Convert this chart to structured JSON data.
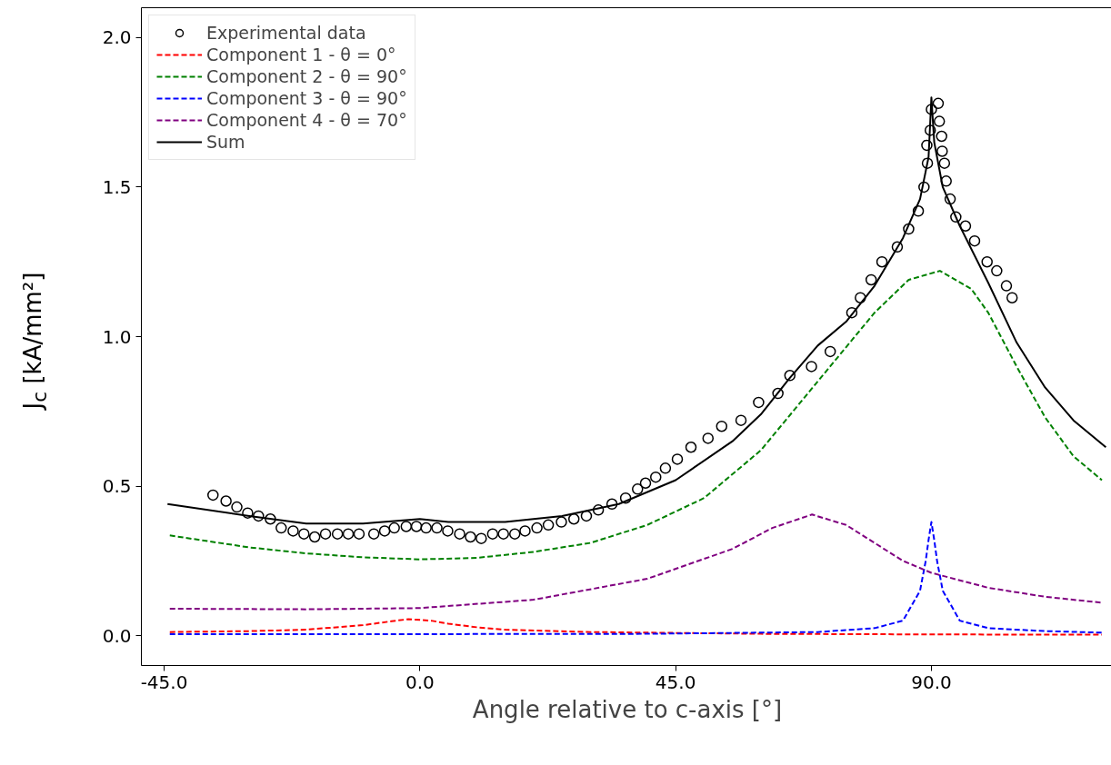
{
  "chart_data": {
    "type": "line",
    "xlabel": "Angle relative to c-axis [°]",
    "ylabel": "J$_{c}$ [kA/mm²]",
    "xlim": [
      -49,
      122
    ],
    "ylim": [
      -0.1,
      2.1
    ],
    "xticks": [
      {
        "value": -45,
        "label": "-45.0"
      },
      {
        "value": 0,
        "label": "0.0"
      },
      {
        "value": 45,
        "label": "45.0"
      },
      {
        "value": 90,
        "label": "90.0"
      }
    ],
    "yticks": [
      {
        "value": 0,
        "label": "0.0"
      },
      0.5,
      {
        "value": 1,
        "label": "1.0"
      },
      1.5,
      {
        "value": 2,
        "label": "2.0"
      }
    ],
    "grid": false,
    "legend": "top left",
    "series": [
      {
        "type": "scatter",
        "marker": "circle",
        "name": "Experimental data",
        "color": "#000000",
        "x": [
          -36.4,
          -34.1,
          -32.2,
          -30.3,
          -28.4,
          -26.3,
          -24.4,
          -22.3,
          -20.4,
          -18.5,
          -16.6,
          -14.5,
          -12.6,
          -10.7,
          -8.1,
          -6.2,
          -4.5,
          -2.4,
          -0.6,
          1.1,
          3.0,
          4.9,
          7.0,
          8.9,
          10.8,
          12.8,
          14.7,
          16.7,
          18.5,
          20.6,
          22.6,
          24.9,
          27.1,
          29.3,
          31.4,
          33.8,
          36.2,
          38.3,
          39.7,
          41.5,
          43.2,
          45.3,
          47.7,
          50.7,
          53.1,
          56.5,
          59.6,
          63.0,
          65.1,
          68.9,
          72.2,
          76.0,
          77.5,
          79.4,
          81.3,
          84.0,
          86.0,
          87.7,
          88.7,
          89.3,
          89.2,
          89.8,
          90.0,
          91.2,
          91.4,
          91.8,
          91.9,
          92.3,
          92.6,
          93.3,
          94.3,
          96.0,
          97.6,
          99.8,
          101.5,
          103.2,
          104.2
        ],
        "values": [
          0.47,
          0.45,
          0.43,
          0.41,
          0.4,
          0.39,
          0.36,
          0.35,
          0.34,
          0.33,
          0.34,
          0.34,
          0.34,
          0.34,
          0.34,
          0.35,
          0.36,
          0.365,
          0.365,
          0.36,
          0.36,
          0.35,
          0.34,
          0.33,
          0.325,
          0.34,
          0.34,
          0.34,
          0.35,
          0.36,
          0.37,
          0.38,
          0.39,
          0.4,
          0.42,
          0.44,
          0.46,
          0.49,
          0.51,
          0.53,
          0.56,
          0.59,
          0.63,
          0.66,
          0.7,
          0.72,
          0.78,
          0.81,
          0.87,
          0.9,
          0.95,
          1.08,
          1.13,
          1.19,
          1.25,
          1.3,
          1.36,
          1.42,
          1.5,
          1.58,
          1.64,
          1.69,
          1.76,
          1.78,
          1.72,
          1.67,
          1.62,
          1.58,
          1.52,
          1.46,
          1.4,
          1.37,
          1.32,
          1.25,
          1.22,
          1.17,
          1.13
        ]
      },
      {
        "type": "line",
        "line_style": "dashed",
        "name": "Component 1 - θ = 0°",
        "color": "#ff0000",
        "x": [
          -44,
          -30,
          -20,
          -10,
          -5,
          -2,
          2,
          5,
          10,
          15,
          30,
          60,
          90,
          120
        ],
        "values": [
          0.012,
          0.015,
          0.02,
          0.035,
          0.048,
          0.055,
          0.05,
          0.04,
          0.028,
          0.02,
          0.012,
          0.006,
          0.004,
          0.003
        ]
      },
      {
        "type": "line",
        "line_style": "dashed",
        "name": "Component 2 - θ = 90°",
        "color": "#008000",
        "x": [
          -44,
          -30,
          -20,
          -10,
          0,
          10,
          20,
          30,
          40,
          50,
          60,
          70,
          80,
          86,
          91.5,
          97,
          100,
          105,
          110,
          115,
          120
        ],
        "values": [
          0.335,
          0.295,
          0.275,
          0.262,
          0.255,
          0.26,
          0.28,
          0.31,
          0.37,
          0.46,
          0.62,
          0.85,
          1.08,
          1.19,
          1.22,
          1.16,
          1.08,
          0.9,
          0.73,
          0.6,
          0.52
        ]
      },
      {
        "type": "line",
        "line_style": "dashed",
        "name": "Component 3 - θ = 90°",
        "color": "#0000ff",
        "x": [
          -44,
          0,
          40,
          70,
          80,
          85,
          88,
          89,
          89.5,
          90,
          90.5,
          91,
          92,
          95,
          100,
          110,
          120
        ],
        "values": [
          0.005,
          0.005,
          0.006,
          0.012,
          0.025,
          0.05,
          0.15,
          0.25,
          0.32,
          0.38,
          0.32,
          0.25,
          0.15,
          0.05,
          0.025,
          0.015,
          0.01
        ]
      },
      {
        "type": "line",
        "line_style": "dashed",
        "name": "Component 4 - θ = 70°",
        "color": "#800080",
        "x": [
          -44,
          -20,
          0,
          20,
          40,
          55,
          62,
          69,
          75,
          80,
          85,
          90,
          100,
          110,
          120
        ],
        "values": [
          0.09,
          0.088,
          0.092,
          0.12,
          0.19,
          0.29,
          0.36,
          0.405,
          0.37,
          0.31,
          0.25,
          0.21,
          0.16,
          0.13,
          0.11
        ]
      },
      {
        "type": "line",
        "line_style": "solid",
        "name": "Sum",
        "color": "#000000",
        "x": [
          -44.4,
          -30,
          -20,
          -10,
          0,
          5,
          15,
          25,
          35,
          45,
          55,
          60,
          65,
          70,
          75,
          80,
          85,
          88,
          89.5,
          90,
          90.5,
          92,
          95,
          100,
          105,
          110,
          115,
          120.7
        ],
        "values": [
          0.44,
          0.4,
          0.375,
          0.375,
          0.39,
          0.38,
          0.38,
          0.4,
          0.44,
          0.52,
          0.65,
          0.74,
          0.86,
          0.97,
          1.05,
          1.17,
          1.33,
          1.46,
          1.6,
          1.8,
          1.65,
          1.5,
          1.37,
          1.18,
          0.98,
          0.83,
          0.72,
          0.63
        ]
      }
    ]
  }
}
